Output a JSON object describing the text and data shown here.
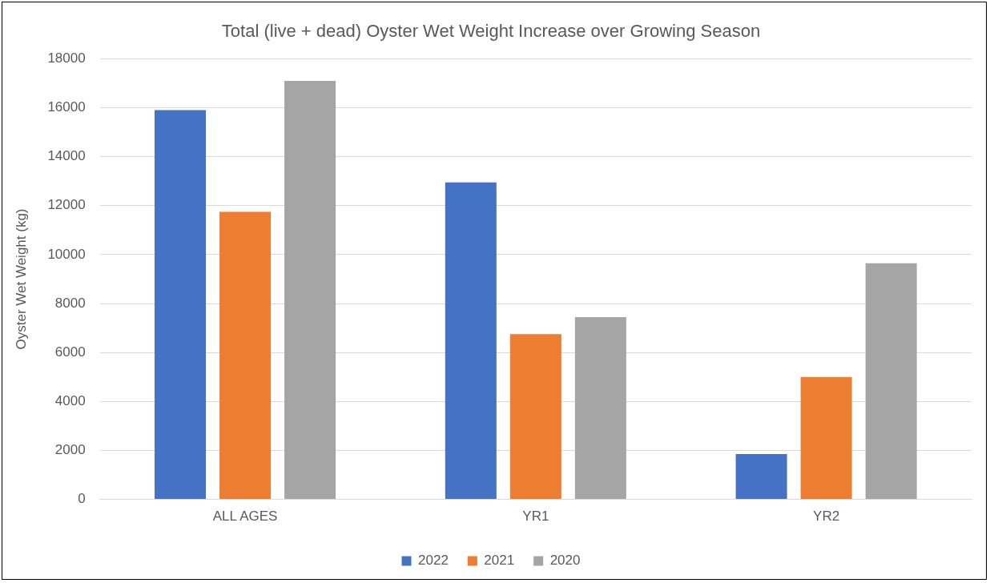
{
  "chart_data": {
    "type": "bar",
    "title": "Total (live + dead) Oyster Wet Weight Increase over Growing Season",
    "ylabel": "Oyster Wet Weight (kg)",
    "categories": [
      "ALL AGES",
      "YR1",
      "YR2"
    ],
    "series": [
      {
        "name": "2022",
        "color": "#4472c4",
        "values": [
          15900,
          12950,
          1850
        ]
      },
      {
        "name": "2021",
        "color": "#ed7d31",
        "values": [
          11750,
          6750,
          5000
        ]
      },
      {
        "name": "2020",
        "color": "#a5a5a5",
        "values": [
          17100,
          7450,
          9650
        ]
      }
    ],
    "ylim": [
      0,
      18000
    ],
    "yticks": [
      0,
      2000,
      4000,
      6000,
      8000,
      10000,
      12000,
      14000,
      16000,
      18000
    ],
    "grid": "y",
    "legend": "bottom"
  }
}
